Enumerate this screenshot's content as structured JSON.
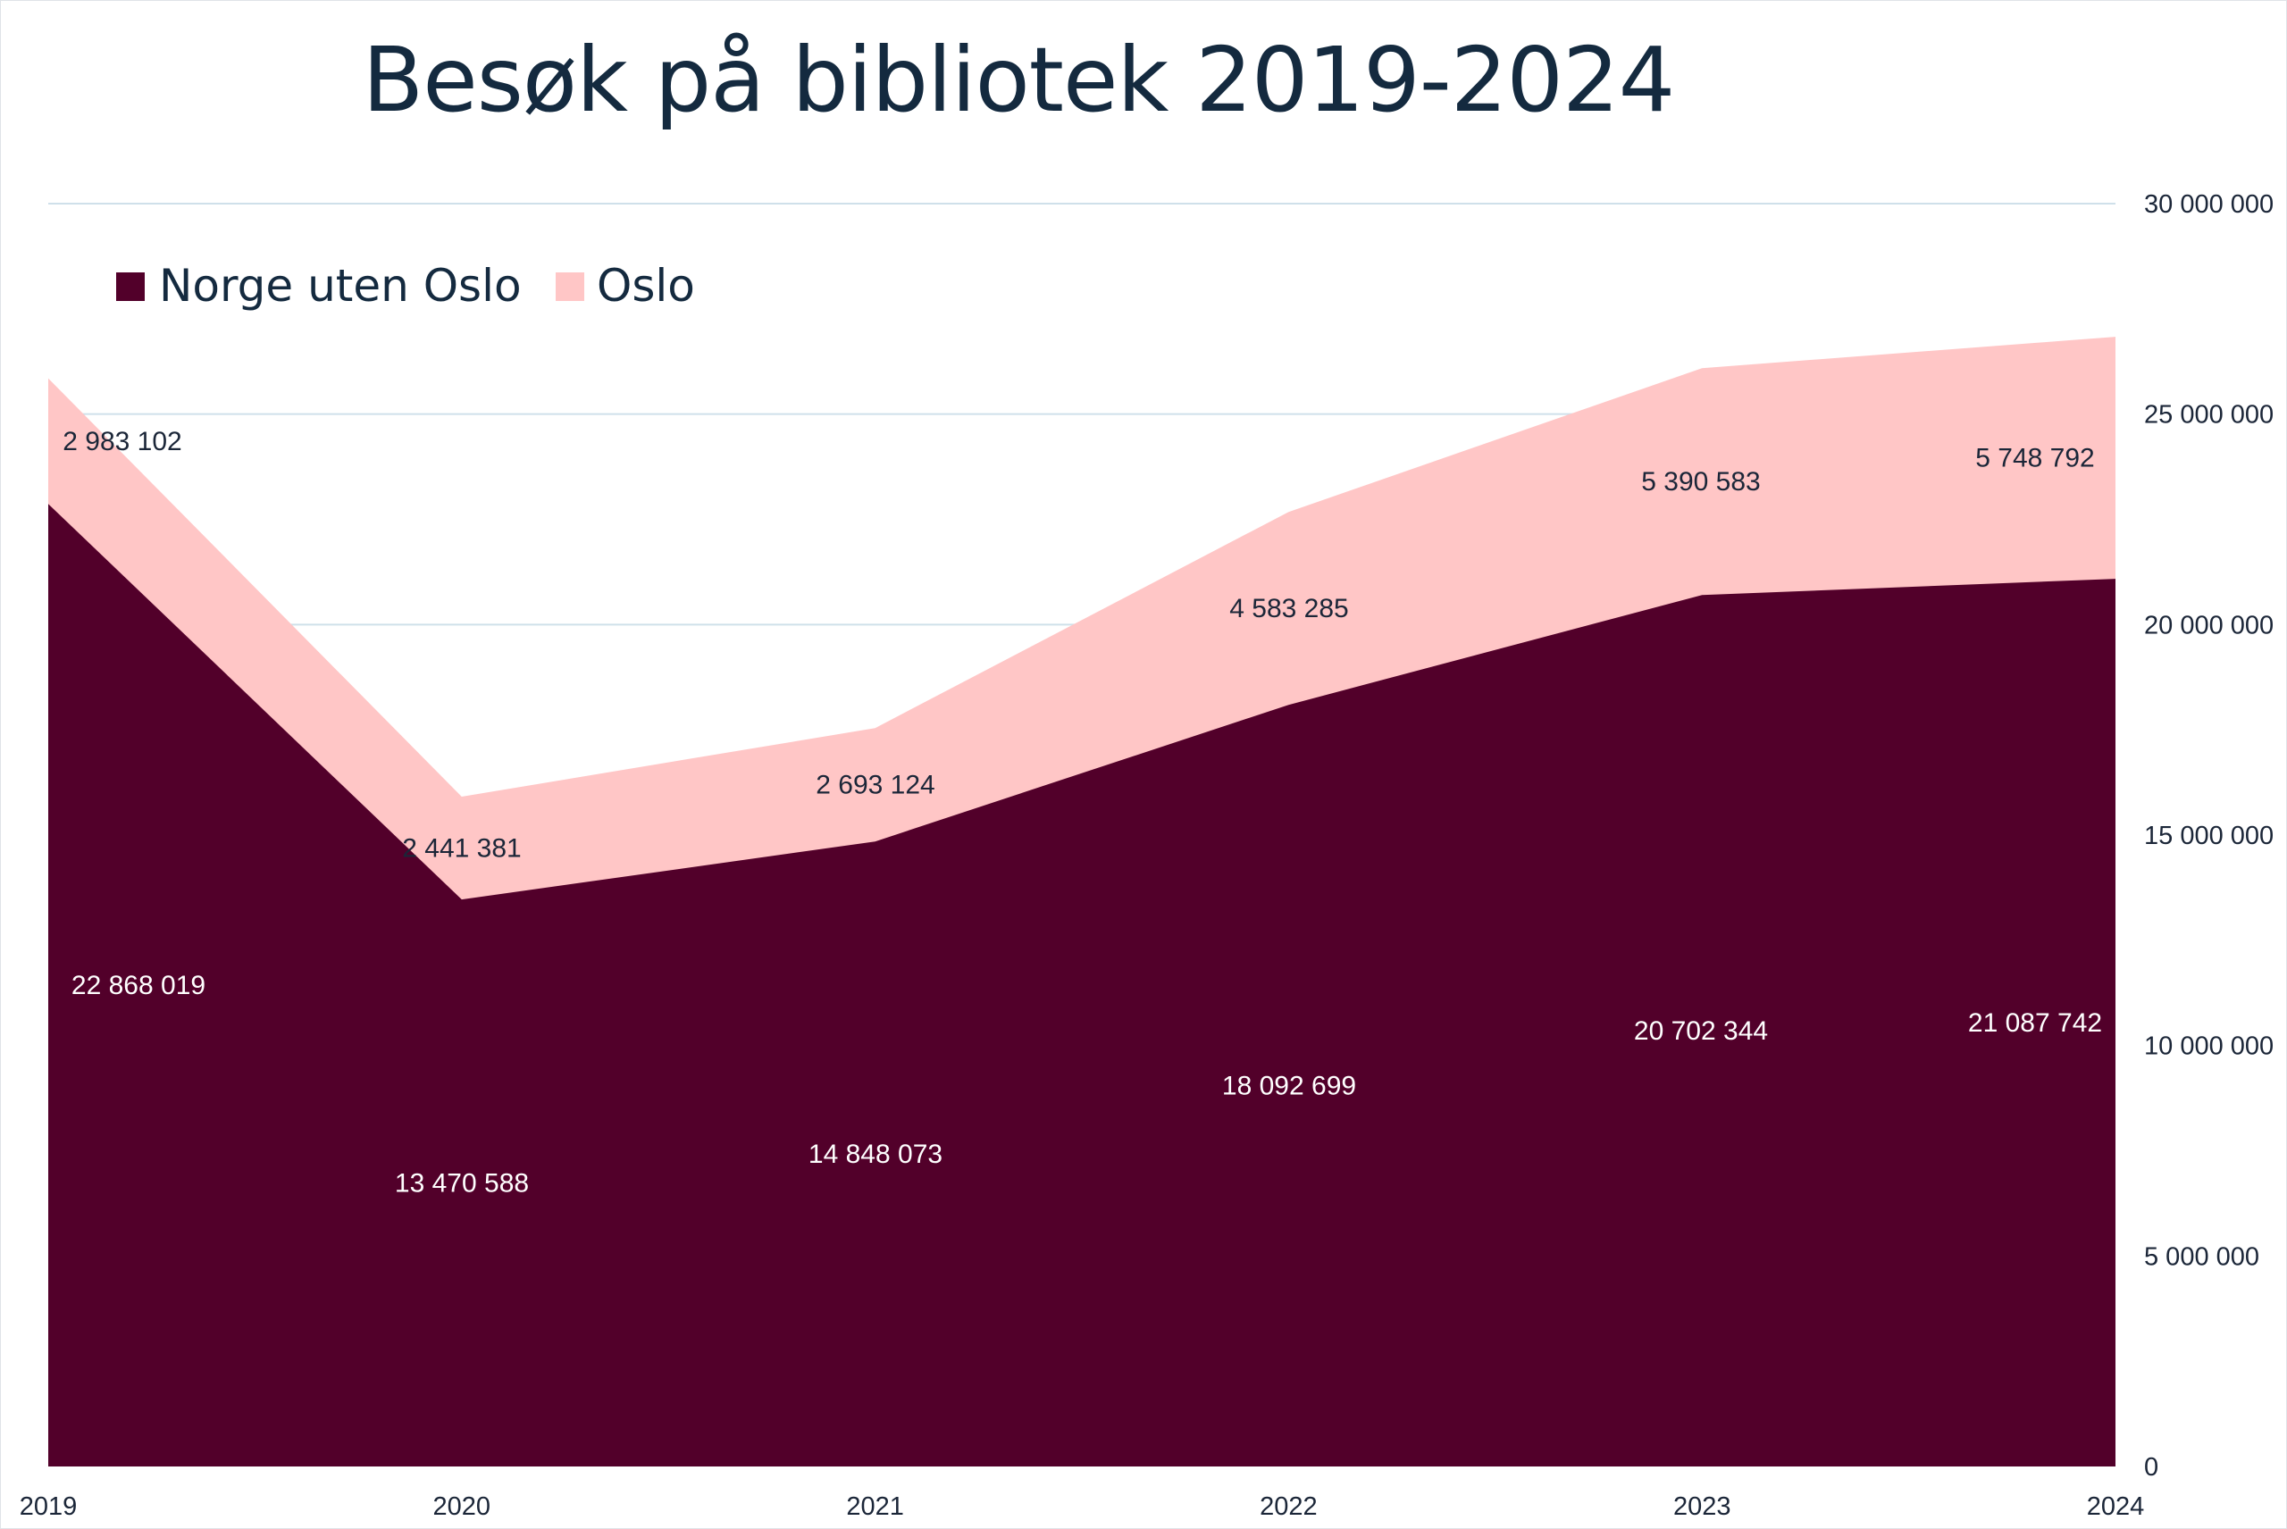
{
  "chart_data": {
    "type": "area",
    "stacked": true,
    "title": "Besøk på bibliotek 2019-2024",
    "categories": [
      "2019",
      "2020",
      "2021",
      "2022",
      "2023",
      "2024"
    ],
    "series": [
      {
        "name": "Norge uten Oslo",
        "color": "#52002a",
        "values": [
          22868019,
          13470588,
          14848073,
          18092699,
          20702344,
          21087742
        ],
        "labels": [
          "22 868 019",
          "13 470 588",
          "14 848 073",
          "18 092 699",
          "20 702 344",
          "21 087 742"
        ]
      },
      {
        "name": "Oslo",
        "color": "#ffc6c6",
        "values": [
          2983102,
          2441381,
          2693124,
          4583285,
          5390583,
          5748792
        ],
        "labels": [
          "2 983 102",
          "2 441 381",
          "2 693 124",
          "4 583 285",
          "5 390 583",
          "5 748 792"
        ]
      }
    ],
    "y_axis": {
      "side": "right",
      "min": 0,
      "max": 30000000,
      "step": 5000000,
      "tick_labels": [
        "0",
        "5 000 000",
        "10 000 000",
        "15 000 000",
        "20 000 000",
        "25 000 000",
        "30 000 000"
      ]
    },
    "grid": true,
    "grid_color": "#cfe0ea",
    "legend_position": "top-left",
    "label_dark_color": "#1b2638",
    "label_light_color": "#ffffff"
  }
}
